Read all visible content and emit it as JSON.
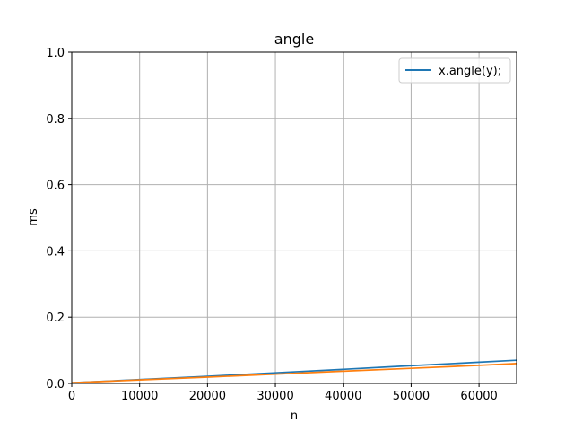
{
  "chart_data": {
    "type": "line",
    "title": "angle",
    "xlabel": "n",
    "ylabel": "ms",
    "xlim": [
      0,
      65536
    ],
    "ylim": [
      0,
      1.0
    ],
    "xticks": [
      0,
      10000,
      20000,
      30000,
      40000,
      50000,
      60000
    ],
    "xtick_labels": [
      "0",
      "10000",
      "20000",
      "30000",
      "40000",
      "50000",
      "60000"
    ],
    "yticks": [
      0.0,
      0.2,
      0.4,
      0.6,
      0.8,
      1.0
    ],
    "ytick_labels": [
      "0.0",
      "0.2",
      "0.4",
      "0.6",
      "0.8",
      "1.0"
    ],
    "grid": true,
    "legend_position": "top-right",
    "series": [
      {
        "name": "x.angle(y);",
        "color": "#1f77b4",
        "x": [
          0,
          10000,
          20000,
          30000,
          40000,
          50000,
          60000,
          65536
        ],
        "y": [
          0.002,
          0.0115,
          0.0215,
          0.032,
          0.0425,
          0.0535,
          0.064,
          0.07
        ]
      },
      {
        "name": "",
        "color": "#ff7f0e",
        "x": [
          0,
          10000,
          20000,
          30000,
          40000,
          50000,
          60000,
          65536
        ],
        "y": [
          0.002,
          0.0105,
          0.019,
          0.028,
          0.037,
          0.0455,
          0.0545,
          0.06
        ]
      }
    ]
  }
}
